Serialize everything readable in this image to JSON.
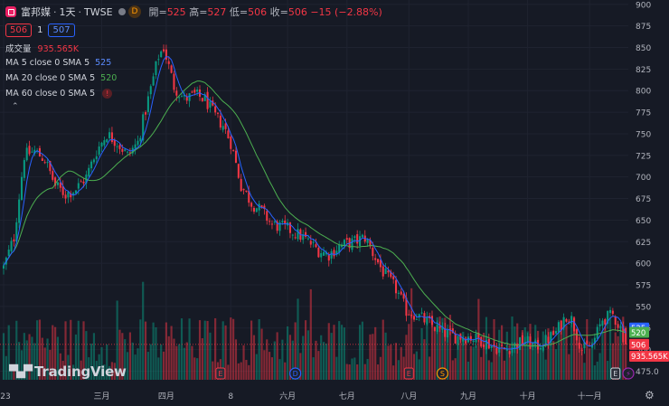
{
  "header": {
    "symbol": "富邦媒",
    "interval": "1天",
    "exchange": "TWSE",
    "badge": "D",
    "open_label": "開",
    "open": "525",
    "high_label": "高",
    "high": "527",
    "low_label": "低",
    "low": "506",
    "close_label": "收",
    "close": "506",
    "change": "−15 (−2.88%)"
  },
  "quote": {
    "bid": "506",
    "spread": "1",
    "ask": "507"
  },
  "volume_indicator": {
    "label": "成交量",
    "value": "935.565K"
  },
  "indicators": [
    {
      "label": "MA 5 close 0 SMA 5",
      "value": "525",
      "color": "#2962ff"
    },
    {
      "label": "MA 20 close 0 SMA 5",
      "value": "520",
      "color": "#4caf50"
    },
    {
      "label": "MA 60 close 0 SMA 5",
      "value": "",
      "color": "#9598a1"
    }
  ],
  "branding": "TradingView",
  "colors": {
    "up": "#089981",
    "down": "#f23645",
    "ma5": "#2962ff",
    "ma20": "#4caf50",
    "background": "#161a25"
  },
  "chart_data": {
    "type": "candlestick",
    "y_ticks": [
      "900",
      "875",
      "850",
      "825",
      "800",
      "775",
      "750",
      "725",
      "700",
      "675",
      "650",
      "625",
      "600",
      "575",
      "550",
      "525",
      "500",
      "475.0"
    ],
    "ylim": [
      465,
      905
    ],
    "x_ticks": [
      {
        "label": "23",
        "index": 0
      },
      {
        "label": "三月",
        "index": 38
      },
      {
        "label": "四月",
        "index": 63
      },
      {
        "label": "8",
        "index": 88
      },
      {
        "label": "六月",
        "index": 110
      },
      {
        "label": "七月",
        "index": 133
      },
      {
        "label": "八月",
        "index": 157
      },
      {
        "label": "九月",
        "index": 180
      },
      {
        "label": "十月",
        "index": 203
      },
      {
        "label": "十一月",
        "index": 227
      }
    ],
    "n_bars": 242,
    "price_path": [
      [
        0,
        595
      ],
      [
        4,
        630
      ],
      [
        8,
        725
      ],
      [
        12,
        730
      ],
      [
        16,
        720
      ],
      [
        20,
        690
      ],
      [
        24,
        680
      ],
      [
        28,
        686
      ],
      [
        32,
        700
      ],
      [
        36,
        730
      ],
      [
        40,
        750
      ],
      [
        44,
        740
      ],
      [
        48,
        725
      ],
      [
        52,
        740
      ],
      [
        56,
        790
      ],
      [
        60,
        840
      ],
      [
        62,
        850
      ],
      [
        66,
        805
      ],
      [
        70,
        790
      ],
      [
        74,
        795
      ],
      [
        78,
        790
      ],
      [
        82,
        770
      ],
      [
        85,
        760
      ],
      [
        88,
        740
      ],
      [
        92,
        690
      ],
      [
        96,
        670
      ],
      [
        100,
        660
      ],
      [
        104,
        645
      ],
      [
        110,
        640
      ],
      [
        116,
        630
      ],
      [
        122,
        615
      ],
      [
        126,
        610
      ],
      [
        130,
        620
      ],
      [
        136,
        625
      ],
      [
        140,
        630
      ],
      [
        143,
        612
      ],
      [
        147,
        590
      ],
      [
        152,
        570
      ],
      [
        156,
        545
      ],
      [
        160,
        540
      ],
      [
        165,
        530
      ],
      [
        170,
        520
      ],
      [
        175,
        515
      ],
      [
        180,
        515
      ],
      [
        186,
        510
      ],
      [
        190,
        503
      ],
      [
        194,
        500
      ],
      [
        198,
        505
      ],
      [
        202,
        510
      ],
      [
        206,
        503
      ],
      [
        210,
        510
      ],
      [
        214,
        520
      ],
      [
        218,
        540
      ],
      [
        220,
        535
      ],
      [
        224,
        500
      ],
      [
        228,
        505
      ],
      [
        232,
        535
      ],
      [
        236,
        540
      ],
      [
        239,
        525
      ],
      [
        241,
        506
      ]
    ],
    "last_price": 506,
    "volume_last": "935.565K",
    "ma5_last": 525,
    "ma20_last": 520,
    "markers": [
      {
        "type": "E",
        "index": 84
      },
      {
        "type": "D",
        "index": 113
      },
      {
        "type": "E",
        "index": 157
      },
      {
        "type": "S",
        "index": 170
      },
      {
        "type": "E",
        "index": 237
      },
      {
        "type": "lightning",
        "index": 242
      }
    ]
  }
}
